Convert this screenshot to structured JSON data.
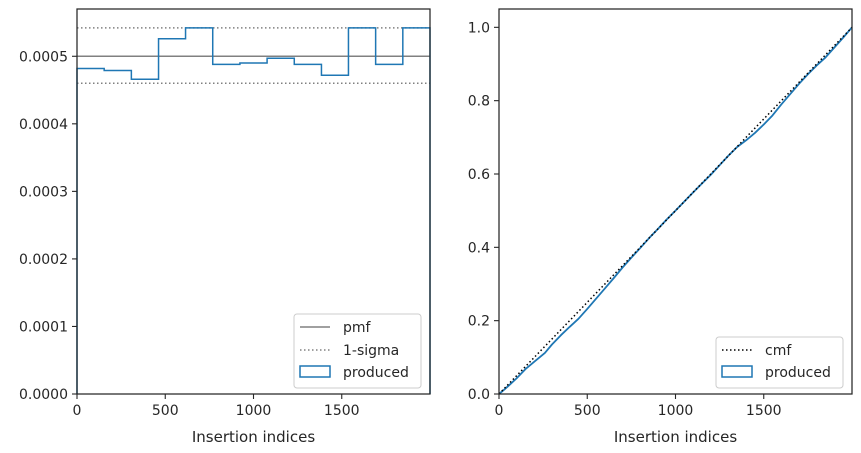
{
  "chart_data": [
    {
      "type": "histogram-step",
      "xlabel": "Insertion indices",
      "ylabel": "",
      "xlim": [
        0,
        2000
      ],
      "ylim": [
        0,
        0.00057
      ],
      "x_ticks": [
        0,
        500,
        1000,
        1500
      ],
      "x_tick_labels": [
        "0",
        "500",
        "1000",
        "1500"
      ],
      "y_ticks": [
        0,
        0.0001,
        0.0002,
        0.0003,
        0.0004,
        0.0005
      ],
      "y_tick_labels": [
        "0.0000",
        "0.0001",
        "0.0002",
        "0.0003",
        "0.0004",
        "0.0005"
      ],
      "pmf": 0.0005,
      "sigma_lower": 0.00046,
      "sigma_upper": 0.000542,
      "bin_edges": [
        0,
        154,
        308,
        462,
        615,
        769,
        923,
        1077,
        1231,
        1385,
        1538,
        1692,
        1846,
        2000
      ],
      "produced_values": [
        0.000482,
        0.000479,
        0.000466,
        0.000526,
        0.000542,
        0.000488,
        0.00049,
        0.000497,
        0.000488,
        0.000472,
        0.000542,
        0.000488,
        0.000542
      ],
      "legend": {
        "position": "lower-right",
        "entries": [
          {
            "label": "pmf",
            "style": "solid",
            "color": "#808080"
          },
          {
            "label": "1-sigma",
            "style": "dotted",
            "color": "#808080"
          },
          {
            "label": "produced",
            "style": "patch",
            "color": "#1f77b4"
          }
        ]
      }
    },
    {
      "type": "line",
      "xlabel": "Insertion indices",
      "ylabel": "",
      "xlim": [
        0,
        2000
      ],
      "ylim": [
        0,
        1.05
      ],
      "x_ticks": [
        0,
        500,
        1000,
        1500
      ],
      "x_tick_labels": [
        "0",
        "500",
        "1000",
        "1500"
      ],
      "y_ticks": [
        0,
        0.2,
        0.4,
        0.6,
        0.8,
        1.0
      ],
      "y_tick_labels": [
        "0.0",
        "0.2",
        "0.4",
        "0.6",
        "0.8",
        "1.0"
      ],
      "cmf": {
        "x": [
          0,
          2000
        ],
        "y": [
          0,
          1
        ]
      },
      "produced": {
        "x": [
          0,
          30,
          60,
          100,
          150,
          200,
          260,
          300,
          350,
          400,
          450,
          500,
          550,
          600,
          650,
          700,
          750,
          800,
          850,
          900,
          950,
          1000,
          1050,
          1100,
          1150,
          1200,
          1250,
          1300,
          1350,
          1400,
          1450,
          1500,
          1550,
          1600,
          1650,
          1700,
          1750,
          1800,
          1850,
          1900,
          1950,
          2000
        ],
        "y": [
          0,
          0.012,
          0.025,
          0.043,
          0.068,
          0.088,
          0.112,
          0.135,
          0.16,
          0.183,
          0.205,
          0.232,
          0.26,
          0.288,
          0.316,
          0.345,
          0.372,
          0.398,
          0.425,
          0.45,
          0.476,
          0.5,
          0.525,
          0.55,
          0.574,
          0.598,
          0.624,
          0.65,
          0.674,
          0.692,
          0.712,
          0.735,
          0.76,
          0.79,
          0.818,
          0.846,
          0.872,
          0.896,
          0.918,
          0.945,
          0.972,
          1.0
        ]
      },
      "legend": {
        "position": "lower-right",
        "entries": [
          {
            "label": "cmf",
            "style": "dotted",
            "color": "#000000"
          },
          {
            "label": "produced",
            "style": "patch",
            "color": "#1f77b4"
          }
        ]
      }
    }
  ]
}
